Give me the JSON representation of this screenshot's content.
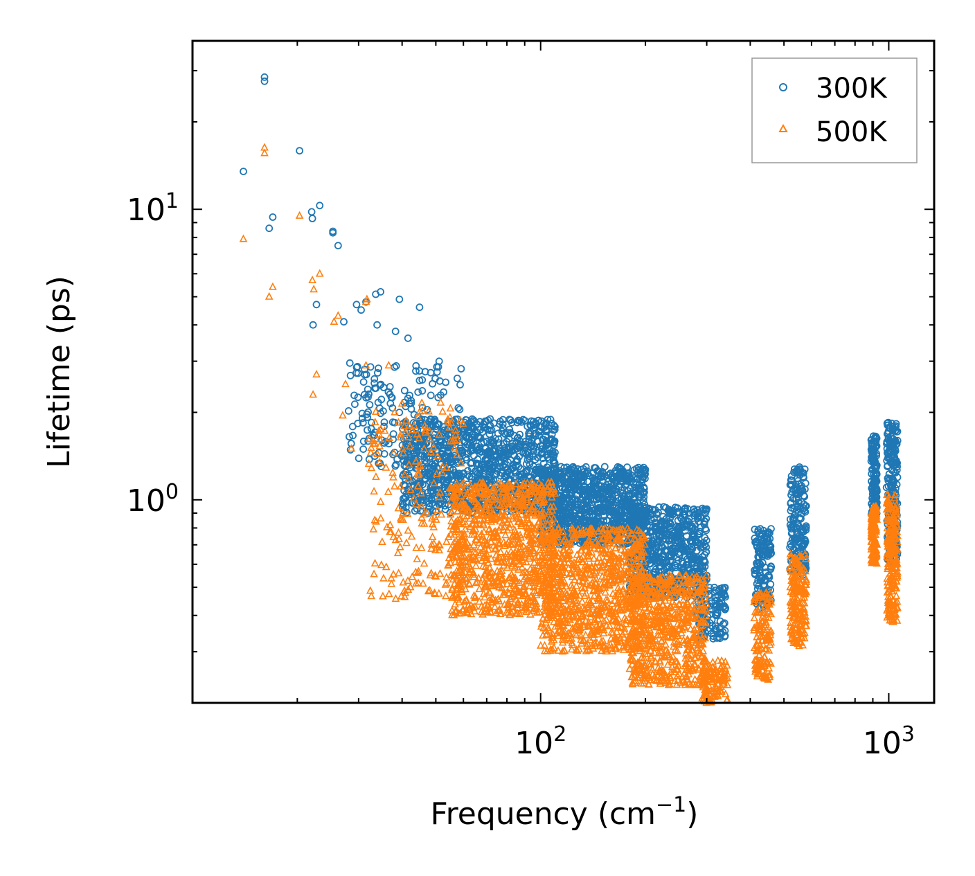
{
  "chart_data": {
    "type": "scatter",
    "title": "",
    "xlabel": "Frequency (cm",
    "xlabel_sup": "−1",
    "xlabel_tail": ")",
    "ylabel": "Lifetime (ps)",
    "xscale": "log",
    "yscale": "log",
    "xlim": [
      10,
      1350
    ],
    "ylim": [
      0.2,
      38
    ],
    "x_ticks": [
      {
        "value": 100,
        "base": "10",
        "exp": "2"
      },
      {
        "value": 1000,
        "base": "10",
        "exp": "3"
      }
    ],
    "y_ticks": [
      {
        "value": 1,
        "base": "10",
        "exp": "0"
      },
      {
        "value": 10,
        "base": "10",
        "exp": "1"
      }
    ],
    "legend_position": "top-right",
    "grid": false,
    "series": [
      {
        "name": "300K",
        "marker": "circle",
        "color": "#1f77b4",
        "explicit_points": [
          [
            16.1,
            28.5
          ],
          [
            16.1,
            27.6
          ],
          [
            20.3,
            15.9
          ],
          [
            14.0,
            13.5
          ],
          [
            23.2,
            10.3
          ],
          [
            22.0,
            9.8
          ],
          [
            22.1,
            9.3
          ],
          [
            17.0,
            9.4
          ],
          [
            16.6,
            8.6
          ],
          [
            25.3,
            8.4
          ],
          [
            25.3,
            8.3
          ],
          [
            22.2,
            4.0
          ],
          [
            22.7,
            4.7
          ],
          [
            26.2,
            7.5
          ],
          [
            29.6,
            4.7
          ],
          [
            33.6,
            5.1
          ],
          [
            31.5,
            4.8
          ],
          [
            34.7,
            5.2
          ],
          [
            30.5,
            4.5
          ],
          [
            27.2,
            4.1
          ],
          [
            33.9,
            4.0
          ],
          [
            38.3,
            3.8
          ],
          [
            41.6,
            3.6
          ],
          [
            44.9,
            4.6
          ],
          [
            39.3,
            4.9
          ]
        ],
        "clusters": [
          {
            "x": [
              40,
              110
            ],
            "y": [
              0.9,
              1.9
            ],
            "n": 1100
          },
          {
            "x": [
              28,
              60
            ],
            "y": [
              1.3,
              3.0
            ],
            "n": 170
          },
          {
            "x": [
              100,
              200
            ],
            "y": [
              0.7,
              1.3
            ],
            "n": 1000
          },
          {
            "x": [
              180,
              300
            ],
            "y": [
              0.46,
              0.95
            ],
            "n": 650
          },
          {
            "x": [
              280,
              340
            ],
            "y": [
              0.33,
              0.5
            ],
            "n": 130
          },
          {
            "x": [
              410,
              460
            ],
            "y": [
              0.42,
              0.8
            ],
            "n": 140
          },
          {
            "x": [
              520,
              580
            ],
            "y": [
              0.55,
              1.3
            ],
            "n": 180
          },
          {
            "x": [
              890,
              925
            ],
            "y": [
              0.85,
              1.7
            ],
            "n": 140
          },
          {
            "x": [
              985,
              1060
            ],
            "y": [
              0.6,
              1.85
            ],
            "n": 220
          }
        ]
      },
      {
        "name": "500K",
        "marker": "triangle",
        "color": "#ff7f0e",
        "explicit_points": [
          [
            16.1,
            16.3
          ],
          [
            16.1,
            15.6
          ],
          [
            14.0,
            7.9
          ],
          [
            20.3,
            9.5
          ],
          [
            17.0,
            5.4
          ],
          [
            16.6,
            5.0
          ],
          [
            22.1,
            5.7
          ],
          [
            22.3,
            5.3
          ],
          [
            23.2,
            6.0
          ],
          [
            22.7,
            2.7
          ],
          [
            22.2,
            2.3
          ],
          [
            26.2,
            4.3
          ],
          [
            27.5,
            2.5
          ],
          [
            27.0,
            1.95
          ],
          [
            25.5,
            4.1
          ],
          [
            31.5,
            4.8
          ],
          [
            31.7,
            4.9
          ],
          [
            28.6,
            1.5
          ],
          [
            31.5,
            2.9
          ],
          [
            36.6,
            2.9
          ]
        ],
        "clusters": [
          {
            "x": [
              32,
              60
            ],
            "y": [
              0.45,
              2.2
            ],
            "n": 220
          },
          {
            "x": [
              55,
              110
            ],
            "y": [
              0.4,
              1.15
            ],
            "n": 900
          },
          {
            "x": [
              100,
              200
            ],
            "y": [
              0.3,
              0.8
            ],
            "n": 900
          },
          {
            "x": [
              180,
              300
            ],
            "y": [
              0.23,
              0.55
            ],
            "n": 650
          },
          {
            "x": [
              290,
              345
            ],
            "y": [
              0.2,
              0.28
            ],
            "n": 120
          },
          {
            "x": [
              410,
              460
            ],
            "y": [
              0.24,
              0.48
            ],
            "n": 140
          },
          {
            "x": [
              520,
              580
            ],
            "y": [
              0.31,
              0.65
            ],
            "n": 180
          },
          {
            "x": [
              890,
              925
            ],
            "y": [
              0.6,
              0.95
            ],
            "n": 140
          },
          {
            "x": [
              985,
              1060
            ],
            "y": [
              0.37,
              1.05
            ],
            "n": 220
          }
        ]
      }
    ]
  },
  "colors": {
    "series_300K": "#1f77b4",
    "series_500K": "#ff7f0e",
    "axes": "#000000",
    "legend_border": "#999999"
  }
}
